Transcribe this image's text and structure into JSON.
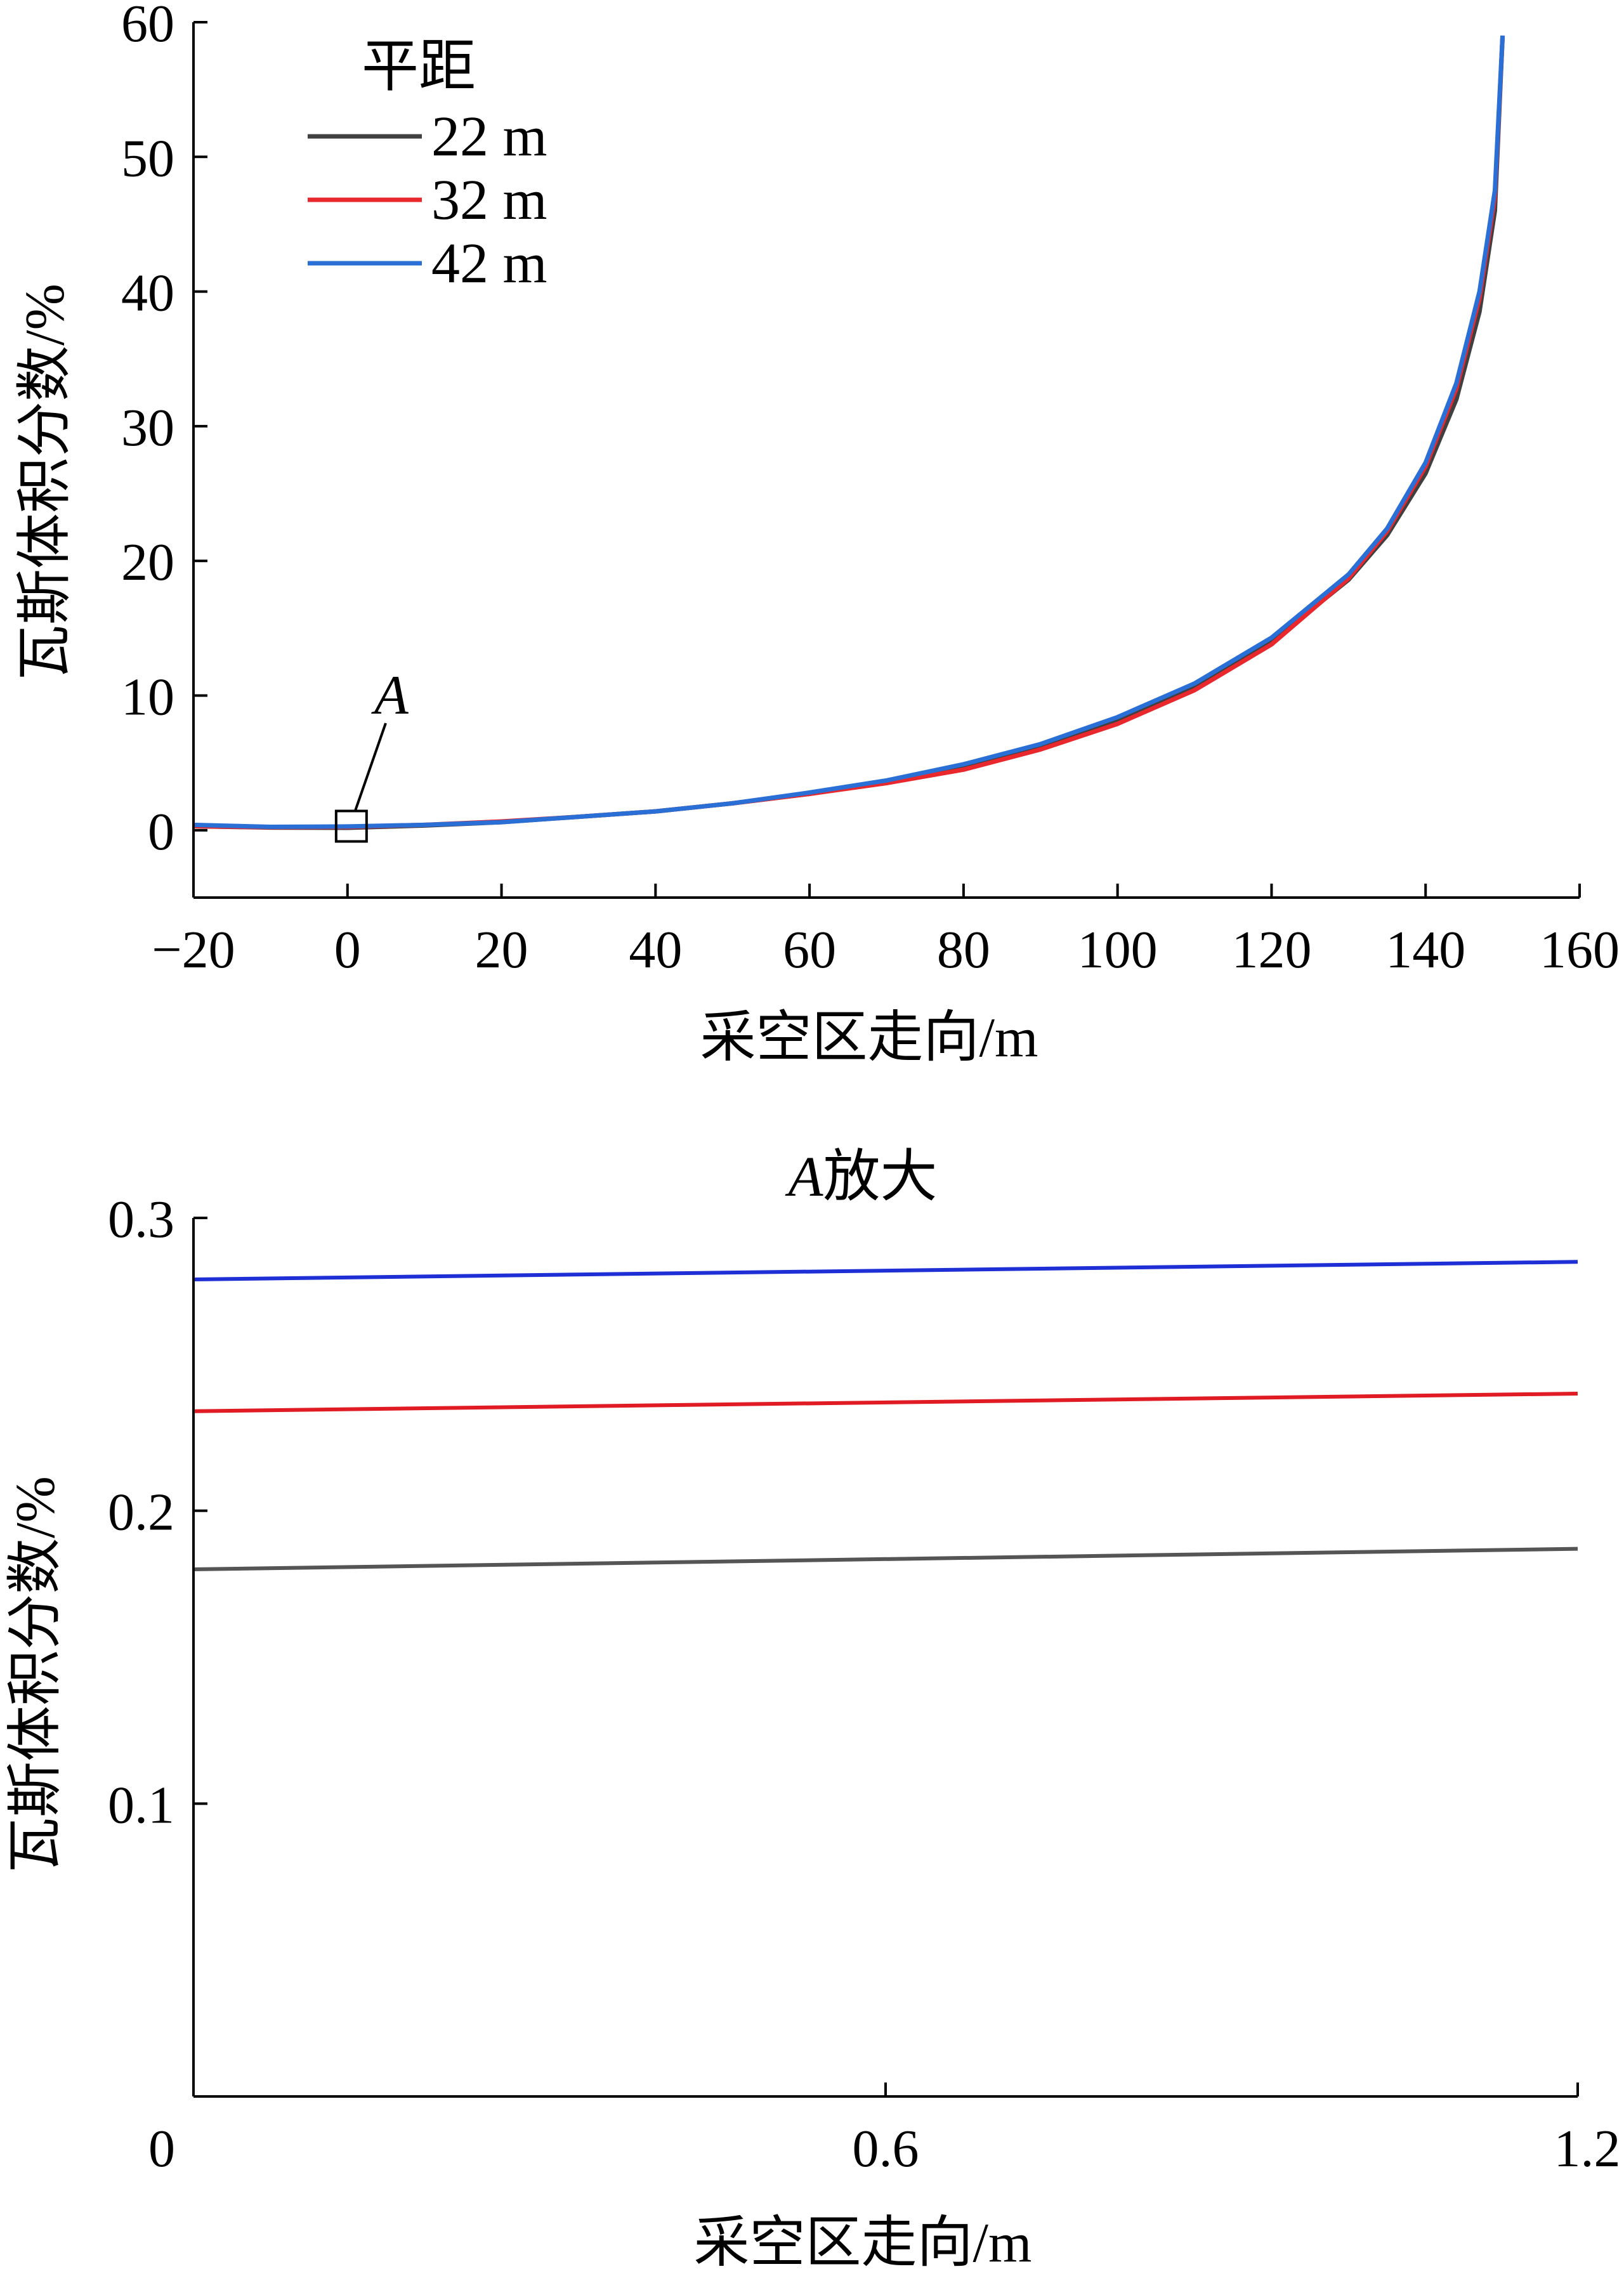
{
  "chart_data": [
    {
      "type": "line",
      "title": "",
      "xlabel": "采空区走向/m",
      "ylabel": "瓦斯体积分数/%",
      "xlim": [
        -20,
        160
      ],
      "ylim": [
        -5,
        60
      ],
      "xticks": [
        -20,
        0,
        20,
        40,
        60,
        80,
        100,
        120,
        140,
        160
      ],
      "xtick_labels": [
        "−20",
        "0",
        "20",
        "40",
        "60",
        "80",
        "100",
        "120",
        "140",
        "160"
      ],
      "yticks": [
        0,
        10,
        20,
        30,
        40,
        50,
        60
      ],
      "ytick_labels": [
        "0",
        "10",
        "20",
        "30",
        "40",
        "50",
        "60"
      ],
      "grid": false,
      "legend": {
        "title": "平距",
        "placement": "top-left"
      },
      "series": [
        {
          "name": "22 m",
          "color": "#404040",
          "x": [
            -20,
            -10,
            0,
            10,
            20,
            30,
            40,
            50,
            60,
            70,
            80,
            90,
            100,
            110,
            120,
            130,
            135,
            140,
            144,
            147,
            149,
            150
          ],
          "y": [
            0.3,
            0.2,
            0.18,
            0.35,
            0.6,
            1.0,
            1.4,
            2.0,
            2.7,
            3.6,
            4.7,
            6.2,
            8.1,
            10.6,
            14.0,
            18.6,
            21.9,
            26.5,
            32.0,
            38.5,
            46.0,
            59.0
          ]
        },
        {
          "name": "32 m",
          "color": "#e8282d",
          "x": [
            -20,
            -10,
            0,
            10,
            20,
            30,
            40,
            50,
            60,
            70,
            80,
            90,
            100,
            110,
            120,
            130,
            135,
            140,
            144,
            147,
            149,
            150
          ],
          "y": [
            0.3,
            0.22,
            0.24,
            0.4,
            0.65,
            1.0,
            1.4,
            2.0,
            2.7,
            3.5,
            4.5,
            6.0,
            7.9,
            10.4,
            13.8,
            18.7,
            22.2,
            27.0,
            32.8,
            39.5,
            47.0,
            59.0
          ]
        },
        {
          "name": "42 m",
          "color": "#2a6fd6",
          "x": [
            -20,
            -10,
            0,
            10,
            20,
            30,
            40,
            50,
            60,
            70,
            80,
            90,
            100,
            110,
            120,
            130,
            135,
            140,
            144,
            147,
            149,
            150
          ],
          "y": [
            0.4,
            0.25,
            0.28,
            0.4,
            0.6,
            1.0,
            1.4,
            2.0,
            2.8,
            3.7,
            4.9,
            6.4,
            8.4,
            10.9,
            14.3,
            19.0,
            22.4,
            27.3,
            33.2,
            40.0,
            47.5,
            59.0
          ]
        }
      ],
      "annotations": [
        {
          "text": "A",
          "target_x": 0.5,
          "target_y": 0.3
        }
      ]
    },
    {
      "type": "line",
      "title": "A放大",
      "title_italic_part": "A",
      "title_rest": "放大",
      "xlabel": "采空区走向/m",
      "ylabel": "瓦斯体积分数/%",
      "xlim": [
        0,
        1.2
      ],
      "ylim": [
        0,
        0.3
      ],
      "xticks": [
        0,
        0.6,
        1.2
      ],
      "xtick_labels": [
        "0",
        "0.6",
        "1.2"
      ],
      "yticks": [
        0.1,
        0.2,
        0.3
      ],
      "ytick_labels": [
        "0.1",
        "0.2",
        "0.3"
      ],
      "grid": false,
      "series": [
        {
          "color": "#1f2fd6",
          "x": [
            0,
            1.2
          ],
          "y": [
            0.279,
            0.285
          ]
        },
        {
          "color": "#e01b24",
          "x": [
            0,
            1.2
          ],
          "y": [
            0.234,
            0.24
          ]
        },
        {
          "color": "#555555",
          "x": [
            0,
            1.2
          ],
          "y": [
            0.18,
            0.187
          ]
        }
      ]
    }
  ]
}
